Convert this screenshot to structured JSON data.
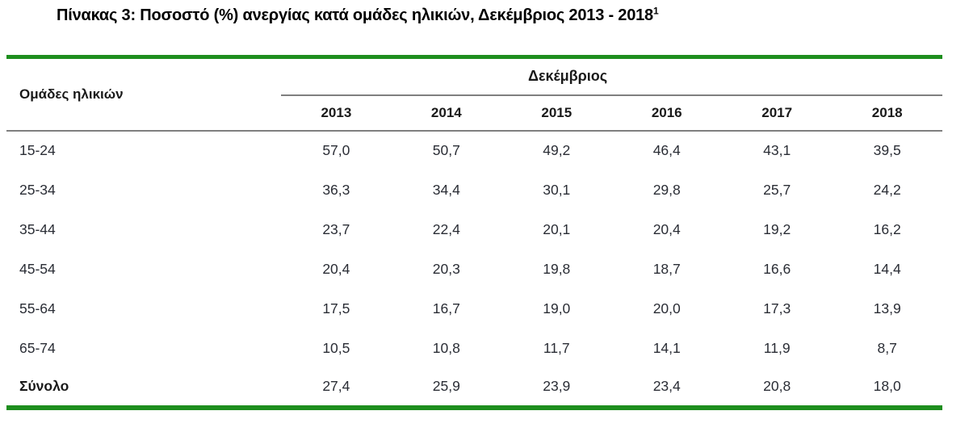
{
  "title": {
    "text": "Πίνακας 3: Ποσοστό (%) ανεργίας κατά ομάδες ηλικιών, Δεκέμβριος 2013 - 2018",
    "superscript": "1"
  },
  "table": {
    "row_header_label": "Ομάδες ηλικιών",
    "group_header": "Δεκέμβριος",
    "years": [
      "2013",
      "2014",
      "2015",
      "2016",
      "2017",
      "2018"
    ],
    "rows": [
      {
        "label": "15-24",
        "values": [
          "57,0",
          "50,7",
          "49,2",
          "46,4",
          "43,1",
          "39,5"
        ]
      },
      {
        "label": "25-34",
        "values": [
          "36,3",
          "34,4",
          "30,1",
          "29,8",
          "25,7",
          "24,2"
        ]
      },
      {
        "label": "35-44",
        "values": [
          "23,7",
          "22,4",
          "20,1",
          "20,4",
          "19,2",
          "16,2"
        ]
      },
      {
        "label": "45-54",
        "values": [
          "20,4",
          "20,3",
          "19,8",
          "18,7",
          "16,6",
          "14,4"
        ]
      },
      {
        "label": "55-64",
        "values": [
          "17,5",
          "16,7",
          "19,0",
          "20,0",
          "17,3",
          "13,9"
        ]
      },
      {
        "label": "65-74",
        "values": [
          "10,5",
          "10,8",
          "11,7",
          "14,1",
          "11,9",
          "8,7"
        ]
      },
      {
        "label": "Σύνολο",
        "values": [
          "27,4",
          "25,9",
          "23,9",
          "23,4",
          "20,8",
          "18,0"
        ]
      }
    ]
  },
  "colors": {
    "accent_green": "#1e8e1e",
    "line_gray": "#7f7f7f"
  },
  "chart_data": {
    "type": "table",
    "title": "Πίνακας 3: Ποσοστό (%) ανεργίας κατά ομάδες ηλικιών, Δεκέμβριος 2013 - 2018",
    "row_header": "Ομάδες ηλικιών",
    "column_group_header": "Δεκέμβριος",
    "columns": [
      "2013",
      "2014",
      "2015",
      "2016",
      "2017",
      "2018"
    ],
    "rows": [
      {
        "label": "15-24",
        "values": [
          57.0,
          50.7,
          49.2,
          46.4,
          43.1,
          39.5
        ]
      },
      {
        "label": "25-34",
        "values": [
          36.3,
          34.4,
          30.1,
          29.8,
          25.7,
          24.2
        ]
      },
      {
        "label": "35-44",
        "values": [
          23.7,
          22.4,
          20.1,
          20.4,
          19.2,
          16.2
        ]
      },
      {
        "label": "45-54",
        "values": [
          20.4,
          20.3,
          19.8,
          18.7,
          16.6,
          14.4
        ]
      },
      {
        "label": "55-64",
        "values": [
          17.5,
          16.7,
          19.0,
          20.0,
          17.3,
          13.9
        ]
      },
      {
        "label": "65-74",
        "values": [
          10.5,
          10.8,
          11.7,
          14.1,
          11.9,
          8.7
        ]
      },
      {
        "label": "Σύνολο",
        "values": [
          27.4,
          25.9,
          23.9,
          23.4,
          20.8,
          18.0
        ]
      }
    ]
  }
}
